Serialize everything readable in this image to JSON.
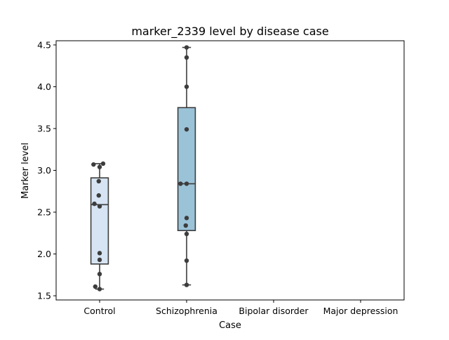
{
  "chart_data": {
    "type": "box",
    "title": "marker_2339 level by disease case",
    "xlabel": "Case",
    "ylabel": "Marker level",
    "categories": [
      "Control",
      "Schizophrenia",
      "Bipolar disorder",
      "Major depression"
    ],
    "ylim": [
      1.45,
      4.55
    ],
    "yticks": [
      1.5,
      2.0,
      2.5,
      3.0,
      3.5,
      4.0,
      4.5
    ],
    "ytick_labels": [
      "1.5",
      "2.0",
      "2.5",
      "3.0",
      "3.5",
      "4.0",
      "4.5"
    ],
    "grid": false,
    "boxes": [
      {
        "category": "Control",
        "whisker_low": 1.58,
        "q1": 1.88,
        "median": 2.59,
        "q3": 2.91,
        "whisker_high": 3.08,
        "color": "#d6e4f3"
      },
      {
        "category": "Schizophrenia",
        "whisker_low": 1.63,
        "q1": 2.28,
        "median": 2.84,
        "q3": 3.75,
        "whisker_high": 4.47,
        "color": "#9bc3d8"
      }
    ],
    "points": [
      {
        "category": "Control",
        "values": [
          3.07,
          3.08,
          3.04,
          2.87,
          2.7,
          2.6,
          2.57,
          2.01,
          1.93,
          1.76,
          1.61,
          1.58
        ],
        "jitter": [
          -0.07,
          0.04,
          0.0,
          -0.01,
          -0.01,
          -0.06,
          0.0,
          0.0,
          0.0,
          0.0,
          -0.05,
          0.0
        ]
      },
      {
        "category": "Schizophrenia",
        "values": [
          4.47,
          4.35,
          4.0,
          3.49,
          2.84,
          2.84,
          2.43,
          2.34,
          2.24,
          1.92,
          1.63
        ],
        "jitter": [
          0.0,
          0.0,
          0.0,
          0.0,
          -0.07,
          0.0,
          0.0,
          -0.01,
          0.0,
          0.0,
          0.0
        ]
      }
    ],
    "colors": {
      "box_edge": "#3d3d3d",
      "point": "#3d3d3d",
      "axis": "#000000"
    }
  }
}
